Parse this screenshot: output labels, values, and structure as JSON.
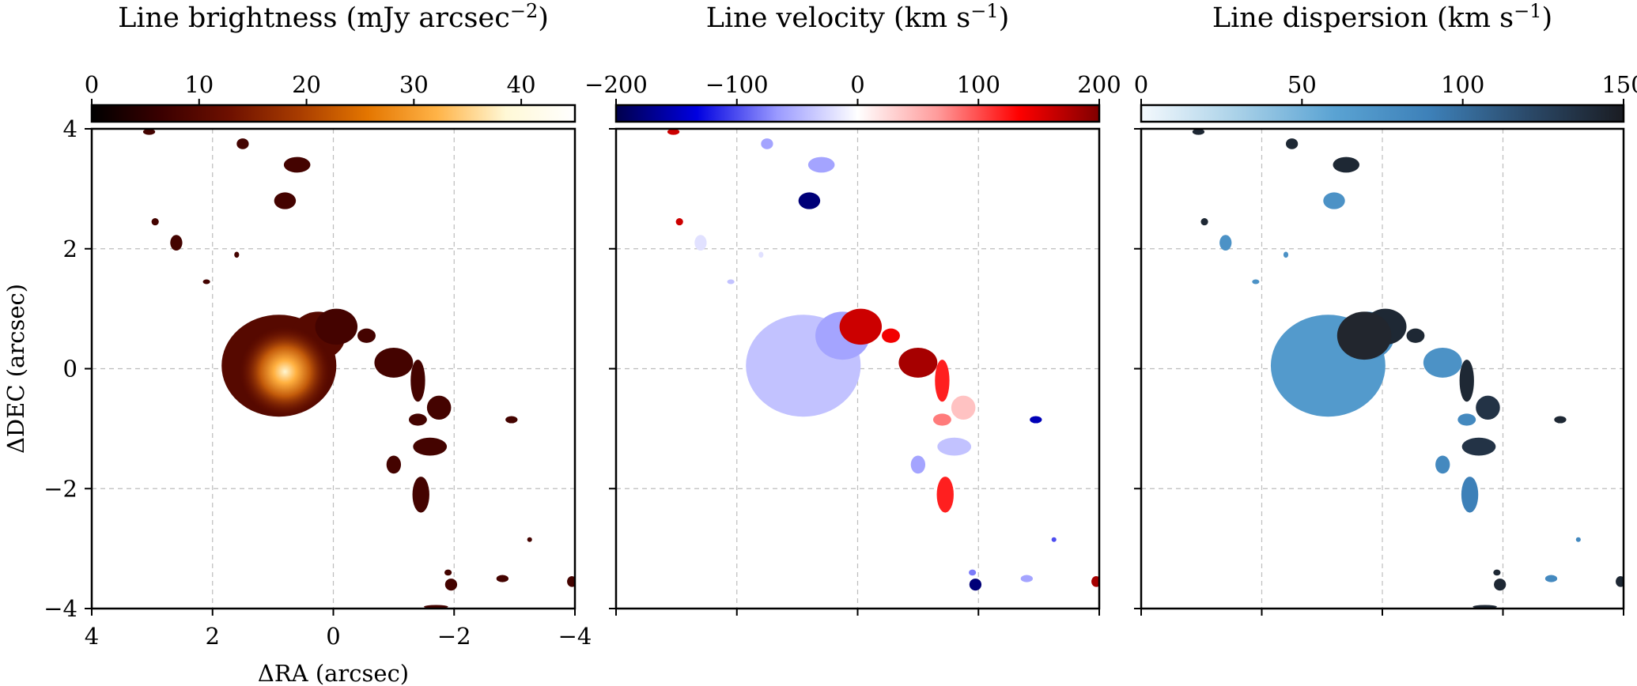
{
  "chart_data": [
    {
      "type": "heatmap",
      "title": "Line brightness (mJy arcsec",
      "title_sup": "−2",
      "title_tail": ")",
      "colorbar": {
        "cmap": "afmhot",
        "range": [
          0,
          45
        ],
        "ticks": [
          0,
          10,
          20,
          30,
          40
        ],
        "tick_labels": [
          "0",
          "10",
          "20",
          "30",
          "40"
        ],
        "stops": [
          "#000000",
          "#3a0000",
          "#6e1000",
          "#a83c00",
          "#e47600",
          "#ffb347",
          "#fff8d6",
          "#ffffff"
        ]
      },
      "xlabel": "ΔRA (arcsec)",
      "ylabel": "ΔDEC (arcsec)",
      "xlim": [
        4,
        -4
      ],
      "ylim": [
        -4,
        4
      ],
      "xticks": [
        4,
        2,
        0,
        -2,
        -4
      ],
      "xtick_labels": [
        "4",
        "2",
        "0",
        "−2",
        "−4"
      ],
      "yticks": [
        4,
        2,
        0,
        -2,
        -4
      ],
      "ytick_labels": [
        "4",
        "2",
        "0",
        "−2",
        "−4"
      ],
      "grid": true,
      "peak": {
        "x": 0.8,
        "y": -0.05,
        "value": 45
      }
    },
    {
      "type": "heatmap",
      "title": "Line velocity (km s",
      "title_sup": "−1",
      "title_tail": ")",
      "colorbar": {
        "cmap": "seismic",
        "range": [
          -200,
          200
        ],
        "ticks": [
          -200,
          -100,
          0,
          100,
          200
        ],
        "tick_labels": [
          "−200",
          "−100",
          "0",
          "100",
          "200"
        ],
        "stops": [
          "#00004c",
          "#0000e0",
          "#9a9aff",
          "#ffffff",
          "#ff9a9a",
          "#ff0000",
          "#800000"
        ]
      },
      "xlim": [
        4,
        -4
      ],
      "ylim": [
        -4,
        4
      ],
      "grid": true
    },
    {
      "type": "heatmap",
      "title": "Line dispersion (km s",
      "title_sup": "−1",
      "title_tail": ")",
      "colorbar": {
        "cmap": "Blues_dark",
        "range": [
          0,
          150
        ],
        "ticks": [
          0,
          50,
          100,
          150
        ],
        "tick_labels": [
          "0",
          "50",
          "100",
          "150"
        ],
        "stops": [
          "#f4f9fd",
          "#a9d1e8",
          "#5aa3d3",
          "#3d80b8",
          "#2b4a6a",
          "#1a1c22"
        ]
      },
      "xlim": [
        4,
        -4
      ],
      "ylim": [
        -4,
        4
      ],
      "grid": true
    }
  ]
}
